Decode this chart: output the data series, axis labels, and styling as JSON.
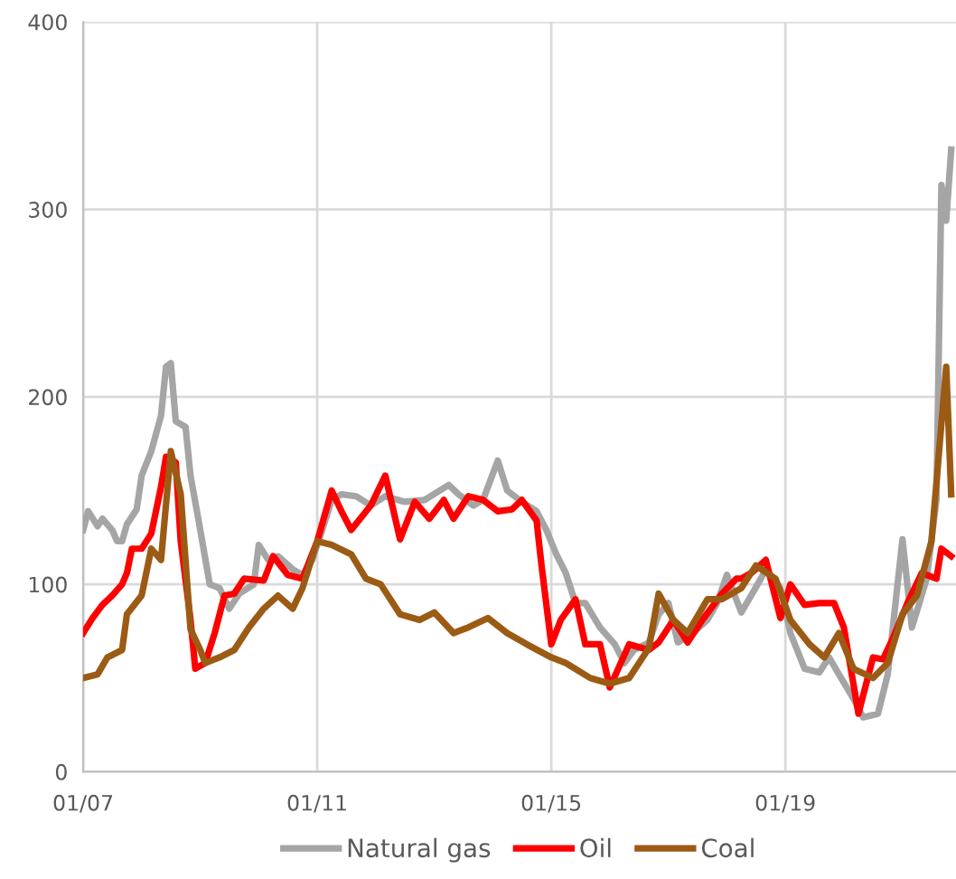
{
  "chart_data": {
    "type": "line",
    "xlim": [
      "2007-01",
      "2021-12"
    ],
    "ylim": [
      0,
      400
    ],
    "yticks": [
      0,
      100,
      200,
      300,
      400
    ],
    "xticks": [
      {
        "value": "2007-01",
        "label": "01/07"
      },
      {
        "value": "2011-01",
        "label": "01/11"
      },
      {
        "value": "2015-01",
        "label": "01/15"
      },
      {
        "value": "2019-01",
        "label": "01/19"
      }
    ],
    "grid": true,
    "legend": "bottom",
    "marker": "none",
    "line_style": "solid",
    "series": [
      {
        "name": "Natural gas",
        "color": "#a5a5a5",
        "x": [
          "2007-01",
          "2007-02",
          "2007-04",
          "2007-05",
          "2007-07",
          "2007-08",
          "2007-09",
          "2007-10",
          "2007-12",
          "2008-01",
          "2008-03",
          "2008-05",
          "2008-06",
          "2008-07",
          "2008-08",
          "2008-10",
          "2008-11",
          "2009-01",
          "2009-03",
          "2009-05",
          "2009-07",
          "2009-09",
          "2009-12",
          "2010-01",
          "2010-03",
          "2010-05",
          "2010-08",
          "2010-10",
          "2010-12",
          "2011-02",
          "2011-04",
          "2011-06",
          "2011-09",
          "2011-12",
          "2012-03",
          "2012-07",
          "2012-11",
          "2013-04",
          "2013-06",
          "2013-09",
          "2013-11",
          "2014-02",
          "2014-04",
          "2014-07",
          "2014-10",
          "2014-12",
          "2015-02",
          "2015-04",
          "2015-06",
          "2015-08",
          "2015-11",
          "2016-02",
          "2016-04",
          "2016-06",
          "2016-09",
          "2016-11",
          "2017-01",
          "2017-03",
          "2017-06",
          "2017-09",
          "2017-11",
          "2018-01",
          "2018-04",
          "2018-06",
          "2018-08",
          "2018-09",
          "2018-12",
          "2019-02",
          "2019-05",
          "2019-08",
          "2019-10",
          "2019-12",
          "2020-03",
          "2020-05",
          "2020-08",
          "2020-10",
          "2021-01",
          "2021-03",
          "2021-06",
          "2021-08",
          "2021-09",
          "2021-10",
          "2021-11"
        ],
        "values": [
          129,
          139,
          131,
          135,
          129,
          123,
          123,
          132,
          140,
          158,
          171,
          190,
          216,
          218,
          187,
          184,
          158,
          129,
          100,
          98,
          87,
          95,
          100,
          121,
          113,
          115,
          108,
          105,
          113,
          129,
          145,
          148,
          147,
          142,
          147,
          144,
          145,
          153,
          148,
          142,
          145,
          166,
          150,
          144,
          139,
          129,
          116,
          106,
          90,
          90,
          77,
          68,
          58,
          65,
          69,
          84,
          90,
          69,
          74,
          81,
          90,
          105,
          85,
          94,
          103,
          108,
          98,
          74,
          55,
          53,
          61,
          52,
          39,
          29,
          31,
          52,
          124,
          77,
          103,
          145,
          313,
          294,
          332
        ]
      },
      {
        "name": "Oil",
        "color": "#ff0000",
        "x": [
          "2007-01",
          "2007-03",
          "2007-05",
          "2007-07",
          "2007-09",
          "2007-10",
          "2007-11",
          "2008-01",
          "2008-03",
          "2008-05",
          "2008-06",
          "2008-08",
          "2008-09",
          "2008-11",
          "2008-12",
          "2009-02",
          "2009-04",
          "2009-06",
          "2009-08",
          "2009-10",
          "2010-02",
          "2010-04",
          "2010-07",
          "2010-10",
          "2011-01",
          "2011-04",
          "2011-06",
          "2011-08",
          "2011-12",
          "2012-03",
          "2012-06",
          "2012-09",
          "2012-12",
          "2013-03",
          "2013-05",
          "2013-08",
          "2013-11",
          "2014-02",
          "2014-05",
          "2014-07",
          "2014-10",
          "2014-11",
          "2015-01",
          "2015-03",
          "2015-06",
          "2015-08",
          "2015-11",
          "2016-01",
          "2016-05",
          "2016-09",
          "2016-11",
          "2017-02",
          "2017-05",
          "2017-08",
          "2017-12",
          "2018-03",
          "2018-04",
          "2018-06",
          "2018-09",
          "2018-12",
          "2019-02",
          "2019-05",
          "2019-08",
          "2019-11",
          "2020-01",
          "2020-04",
          "2020-07",
          "2020-09",
          "2020-11",
          "2021-02",
          "2021-05",
          "2021-08",
          "2021-09",
          "2021-11"
        ],
        "values": [
          74,
          82,
          89,
          94,
          100,
          106,
          119,
          119,
          127,
          152,
          168,
          165,
          123,
          81,
          55,
          58,
          74,
          94,
          95,
          103,
          102,
          115,
          105,
          103,
          123,
          150,
          139,
          129,
          142,
          158,
          124,
          144,
          135,
          145,
          135,
          147,
          145,
          139,
          140,
          145,
          134,
          110,
          68,
          81,
          92,
          68,
          68,
          45,
          68,
          65,
          69,
          81,
          69,
          81,
          95,
          103,
          103,
          106,
          113,
          82,
          100,
          89,
          90,
          90,
          77,
          31,
          61,
          60,
          71,
          90,
          106,
          103,
          119,
          115
        ]
      },
      {
        "name": "Coal",
        "color": "#9c5b14",
        "x": [
          "2007-01",
          "2007-04",
          "2007-06",
          "2007-09",
          "2007-10",
          "2008-01",
          "2008-03",
          "2008-05",
          "2008-07",
          "2008-09",
          "2008-11",
          "2009-01",
          "2009-02",
          "2009-05",
          "2009-08",
          "2009-11",
          "2010-02",
          "2010-05",
          "2010-08",
          "2010-10",
          "2011-01",
          "2011-04",
          "2011-08",
          "2011-11",
          "2012-02",
          "2012-06",
          "2012-10",
          "2013-01",
          "2013-05",
          "2013-08",
          "2013-12",
          "2014-04",
          "2014-08",
          "2015-01",
          "2015-04",
          "2015-09",
          "2016-01",
          "2016-05",
          "2016-09",
          "2016-11",
          "2017-02",
          "2017-05",
          "2017-09",
          "2017-12",
          "2018-04",
          "2018-07",
          "2018-11",
          "2019-02",
          "2019-06",
          "2019-09",
          "2019-12",
          "2020-03",
          "2020-07",
          "2020-10",
          "2021-01",
          "2021-04",
          "2021-07",
          "2021-10",
          "2021-11"
        ],
        "values": [
          50,
          52,
          61,
          65,
          84,
          94,
          119,
          113,
          171,
          148,
          76,
          65,
          58,
          61,
          65,
          77,
          87,
          94,
          87,
          98,
          123,
          121,
          116,
          103,
          100,
          84,
          81,
          85,
          74,
          77,
          82,
          74,
          68,
          61,
          58,
          50,
          47,
          50,
          66,
          95,
          81,
          74,
          92,
          92,
          98,
          110,
          103,
          81,
          68,
          61,
          74,
          55,
          50,
          58,
          84,
          94,
          123,
          216,
          148
        ]
      }
    ]
  }
}
